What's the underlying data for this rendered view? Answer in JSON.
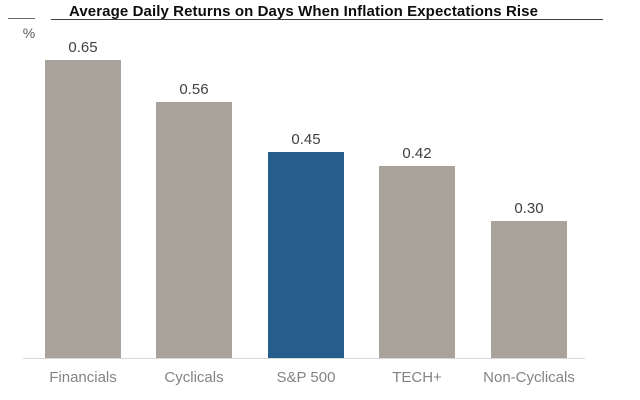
{
  "chart_data": {
    "type": "bar",
    "title": "Average Daily Returns on Days When Inflation Expectations Rise",
    "ylabel": "%",
    "xlabel": "",
    "categories": [
      "Financials",
      "Cyclicals",
      "S&P 500",
      "TECH+",
      "Non-Cyclicals"
    ],
    "values": [
      0.65,
      0.56,
      0.45,
      0.42,
      0.3
    ],
    "value_labels": [
      "0.65",
      "0.56",
      "0.45",
      "0.42",
      "0.30"
    ],
    "highlighted_category": "S&P 500",
    "ylim": [
      0,
      0.72
    ],
    "grid": false,
    "legend": false,
    "colors": {
      "bar_default": "#a9a29b",
      "bar_highlight": "#255d8c",
      "axis_line": "#d9d9d9",
      "value_label": "#404040",
      "category_label": "#848484",
      "title": "#0d0d0d"
    }
  }
}
